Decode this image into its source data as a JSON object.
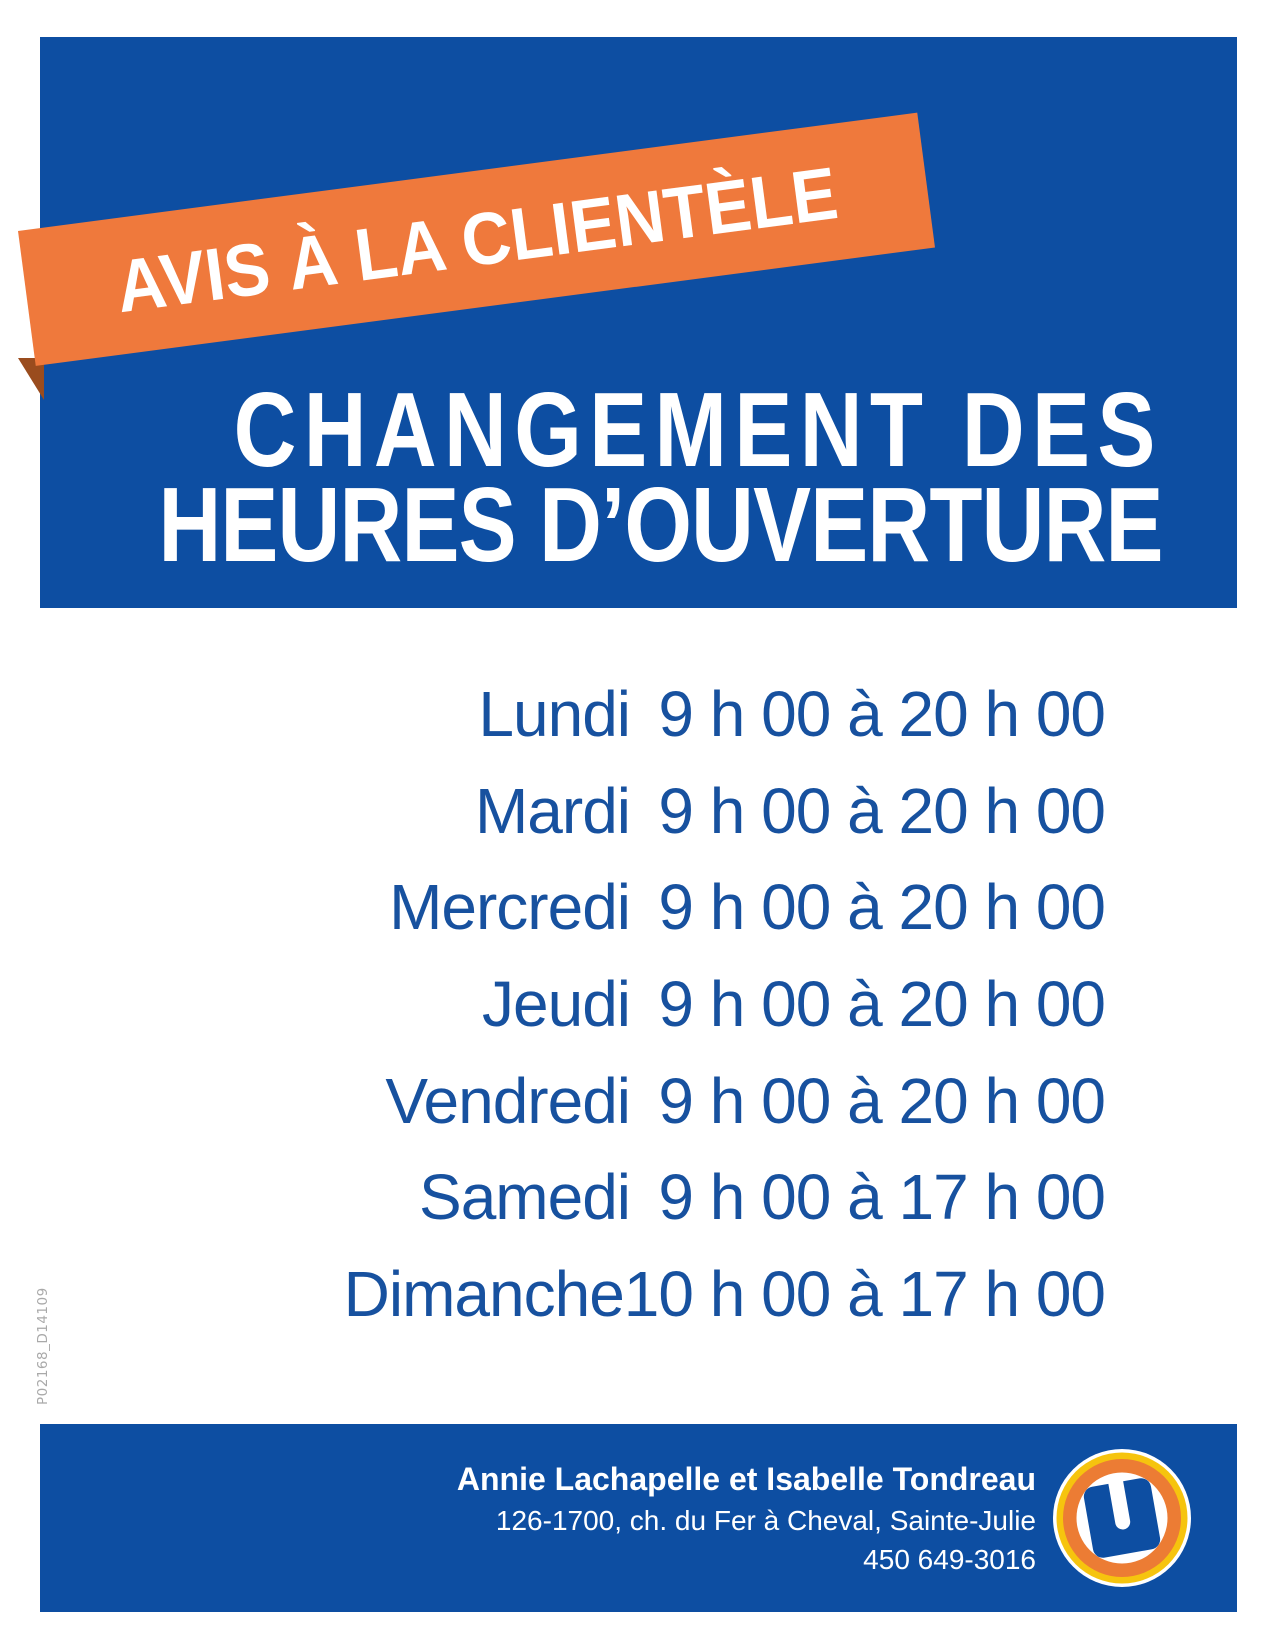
{
  "banner": {
    "label": "AVIS À LA CLIENTÈLE"
  },
  "title": {
    "line1": "CHANGEMENT DES",
    "line2": "HEURES D’OUVERTURE"
  },
  "schedule": [
    {
      "day": "Lundi",
      "hours": "9 h 00 à 20 h 00"
    },
    {
      "day": "Mardi",
      "hours": "9 h 00 à 20 h 00"
    },
    {
      "day": "Mercredi",
      "hours": "9 h 00 à 20 h 00"
    },
    {
      "day": "Jeudi",
      "hours": "9 h 00 à 20 h 00"
    },
    {
      "day": "Vendredi",
      "hours": "9 h 00 à 20 h 00"
    },
    {
      "day": "Samedi",
      "hours": "9 h 00 à 17 h 00"
    },
    {
      "day": "Dimanche",
      "hours": "10 h 00 à 17 h 00"
    }
  ],
  "footer": {
    "owners": "Annie Lachapelle et Isabelle Tondreau",
    "address": "126-1700, ch. du Fer à Cheval, Sainte-Julie",
    "phone": "450 649-3016",
    "logo_letter": "U"
  },
  "print_code": "P02168_D14109",
  "colors": {
    "blue": "#0D4EA2",
    "schedule_text_blue": "#17519F",
    "ribbon_orange": "#EF793C",
    "ribbon_fold": "#9A4C1E",
    "logo_orange": "#EC7C34",
    "logo_yellow": "#F6C40E",
    "print_code_gray": "#A9A9A9"
  }
}
